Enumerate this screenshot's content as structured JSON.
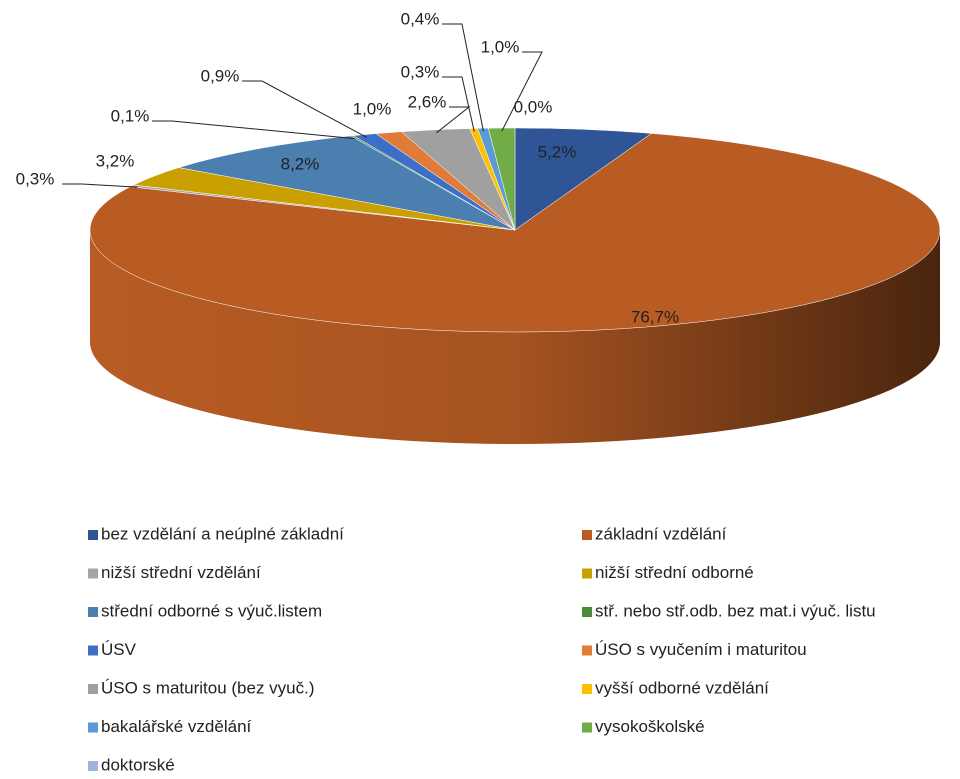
{
  "chart_data": {
    "type": "pie3d",
    "categories": [
      "bez vzdělání a neúplné základní",
      "základní vzdělání",
      "nižší střední vzdělání",
      "nižší střední odborné",
      "střední odborné s výuč.listem",
      "stř. nebo stř.odb. bez mat.i výuč. listu",
      "ÚSV",
      "ÚSO s vyučením i maturitou",
      "ÚSO s maturitou (bez vyuč.)",
      "vyšší odborné vzdělání",
      "bakalářské vzdělání",
      "vysokoškolské",
      "doktorské"
    ],
    "values": [
      5.2,
      76.7,
      0.3,
      3.2,
      8.2,
      0.1,
      0.9,
      1.0,
      2.6,
      0.3,
      0.4,
      1.0,
      0.0
    ],
    "value_labels": [
      "5,2%",
      "76,7%",
      "0,3%",
      "3,2%",
      "8,2%",
      "0,1%",
      "0,9%",
      "1,0%",
      "2,6%",
      "0,3%",
      "0,4%",
      "1,0%",
      "0,0%"
    ],
    "colors": [
      "#2f5597",
      "#b85c24",
      "#a5a5a5",
      "#c9a000",
      "#4a7fb0",
      "#4e8a3a",
      "#3d6fc9",
      "#e07b39",
      "#a0a0a0",
      "#ffc000",
      "#5b9bd5",
      "#70ad47",
      "#9fb6dc"
    ],
    "legend": "bottom"
  }
}
